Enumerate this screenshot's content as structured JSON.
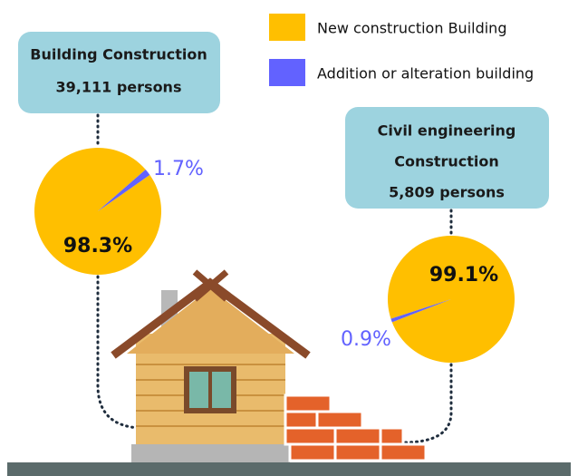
{
  "legend": [
    {
      "name": "New construction Building",
      "color": "#ffbf00"
    },
    {
      "name": "Addition or alteration building",
      "color": "#6262ff"
    }
  ],
  "chart_data": [
    {
      "type": "pie",
      "title": [
        "Building Construction",
        "39,111 persons"
      ],
      "values": [
        98.3,
        1.7
      ],
      "value_labels": [
        "98.3%",
        "1.7%"
      ]
    },
    {
      "type": "pie",
      "title": [
        "Civil engineering",
        "Construction",
        "5,809 persons"
      ],
      "values": [
        99.1,
        0.9
      ],
      "value_labels": [
        "99.1%",
        "0.9%"
      ]
    }
  ]
}
